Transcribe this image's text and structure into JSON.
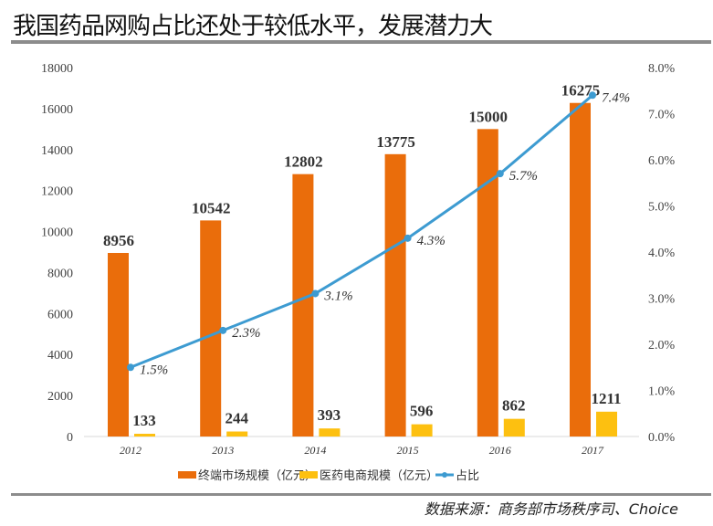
{
  "title": "我国药品网购占比还处于较低水平，发展潜力大",
  "source": "数据来源：商务部市场秩序司、Choice",
  "chart_data": {
    "type": "bar+line",
    "categories": [
      "2012",
      "2013",
      "2014",
      "2015",
      "2016",
      "2017"
    ],
    "series": [
      {
        "name": "终端市场规模（亿元）",
        "type": "bar",
        "axis": "left",
        "color": "#ea6d0b",
        "values": [
          8956,
          10542,
          12802,
          13775,
          15000,
          16275
        ]
      },
      {
        "name": "医药电商规模（亿元）",
        "type": "bar",
        "axis": "left",
        "color": "#fdc010",
        "values": [
          133,
          244,
          393,
          596,
          862,
          1211
        ]
      },
      {
        "name": "占比",
        "type": "line",
        "axis": "right",
        "color": "#3d9bd1",
        "values": [
          1.5,
          2.3,
          3.1,
          4.3,
          5.7,
          7.4
        ],
        "labels": [
          "1.5%",
          "2.3%",
          "3.1%",
          "4.3%",
          "5.7%",
          "7.4%"
        ]
      }
    ],
    "left_axis": {
      "range": [
        0,
        18000
      ],
      "ticks": [
        "0",
        "2000",
        "4000",
        "6000",
        "8000",
        "10000",
        "12000",
        "14000",
        "16000",
        "18000"
      ]
    },
    "right_axis": {
      "range": [
        0,
        8
      ],
      "ticks": [
        "0.0%",
        "1.0%",
        "2.0%",
        "3.0%",
        "4.0%",
        "5.0%",
        "6.0%",
        "7.0%",
        "8.0%"
      ]
    },
    "legend": "bottom",
    "grid": false
  }
}
